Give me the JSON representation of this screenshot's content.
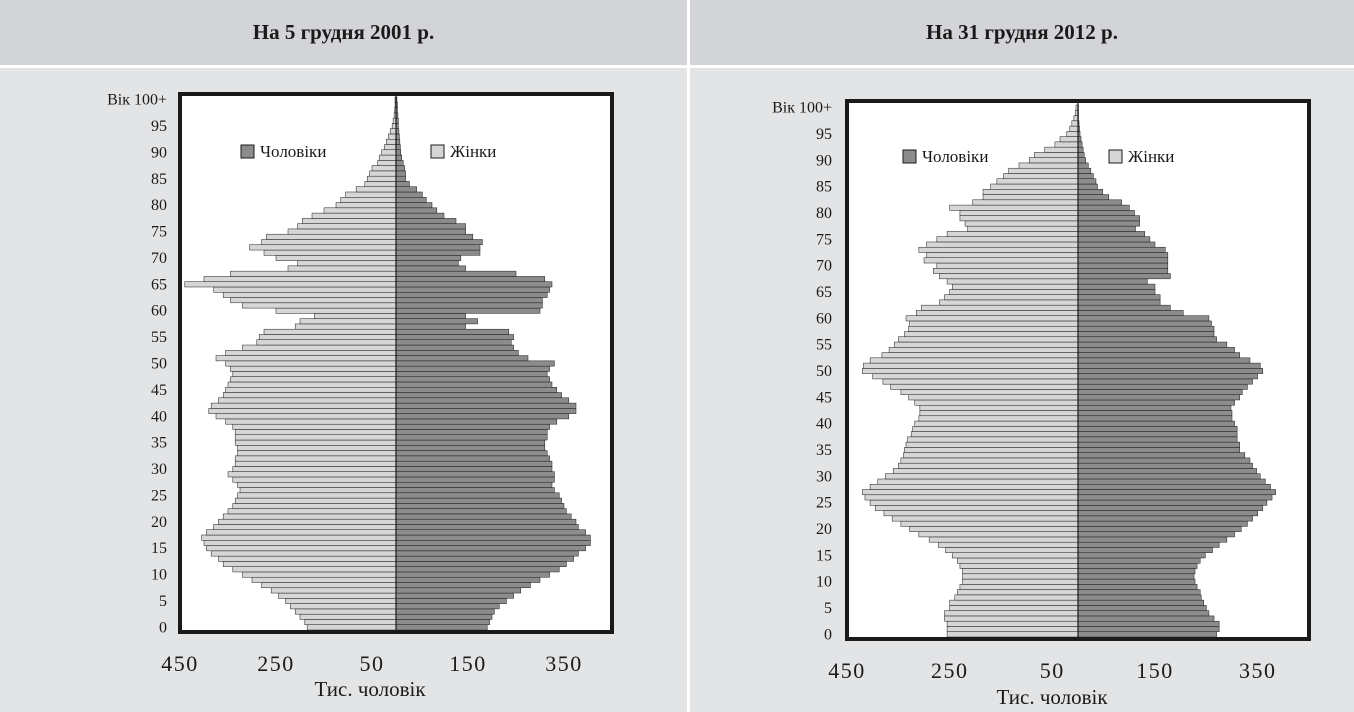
{
  "chart_data": [
    {
      "type": "bar",
      "orientation": "horizontal",
      "title": "На 5 грудня 2001 р.",
      "xlabel": "Тис. чоловік",
      "ylabel": "",
      "x_tick_labels": [
        "450",
        "250",
        "50",
        "150",
        "350"
      ],
      "y_tick_labels": [
        "0",
        "5",
        "10",
        "15",
        "20",
        "25",
        "30",
        "35",
        "40",
        "45",
        "50",
        "55",
        "60",
        "65",
        "70",
        "75",
        "80",
        "85",
        "90",
        "95",
        "Вік 100+"
      ],
      "xlim": [
        -450,
        450
      ],
      "ylim": [
        0,
        100
      ],
      "legend_position": "top",
      "series": [
        {
          "name": "Чоловіки",
          "color": "#8c8c8c",
          "side": "right",
          "values": [
            190,
            195,
            200,
            205,
            215,
            230,
            245,
            260,
            280,
            300,
            320,
            340,
            355,
            370,
            380,
            395,
            405,
            405,
            395,
            380,
            375,
            365,
            355,
            350,
            345,
            340,
            330,
            325,
            330,
            330,
            325,
            325,
            320,
            315,
            310,
            310,
            315,
            315,
            320,
            335,
            360,
            375,
            375,
            360,
            345,
            335,
            325,
            320,
            315,
            320,
            330,
            275,
            255,
            245,
            240,
            245,
            235,
            145,
            170,
            145,
            300,
            305,
            305,
            315,
            320,
            325,
            310,
            250,
            145,
            130,
            135,
            175,
            175,
            180,
            160,
            145,
            145,
            125,
            100,
            85,
            75,
            63,
            55,
            43,
            28,
            20,
            20,
            18,
            15,
            12,
            10,
            9,
            8,
            7,
            6,
            5,
            5,
            4,
            3,
            3,
            2
          ]
        },
        {
          "name": "Жінки",
          "color": "#d6d6d6",
          "side": "left",
          "values": [
            185,
            190,
            200,
            210,
            220,
            230,
            245,
            260,
            280,
            300,
            320,
            340,
            360,
            370,
            385,
            395,
            400,
            405,
            395,
            380,
            370,
            360,
            350,
            340,
            335,
            330,
            325,
            330,
            340,
            350,
            340,
            335,
            335,
            330,
            330,
            335,
            335,
            335,
            340,
            355,
            375,
            390,
            385,
            370,
            360,
            355,
            350,
            345,
            340,
            345,
            355,
            375,
            355,
            320,
            290,
            285,
            275,
            210,
            200,
            170,
            250,
            320,
            345,
            360,
            380,
            440,
            400,
            345,
            225,
            205,
            250,
            275,
            305,
            280,
            270,
            225,
            205,
            195,
            175,
            150,
            125,
            115,
            105,
            83,
            65,
            60,
            55,
            50,
            38,
            35,
            30,
            24,
            20,
            16,
            12,
            8,
            6,
            4,
            3,
            2,
            2
          ]
        }
      ]
    },
    {
      "type": "bar",
      "orientation": "horizontal",
      "title": "На 31 грудня 2012 р.",
      "xlabel": "Тис. чоловік",
      "ylabel": "",
      "x_tick_labels": [
        "450",
        "250",
        "50",
        "150",
        "350"
      ],
      "y_tick_labels": [
        "0",
        "5",
        "10",
        "15",
        "20",
        "25",
        "30",
        "35",
        "40",
        "45",
        "50",
        "55",
        "60",
        "65",
        "70",
        "75",
        "80",
        "85",
        "90",
        "95",
        "Вік 100+"
      ],
      "xlim": [
        -450,
        450
      ],
      "ylim": [
        0,
        100
      ],
      "legend_position": "top",
      "series": [
        {
          "name": "Чоловіки",
          "color": "#8c8c8c",
          "side": "right",
          "values": [
            270,
            275,
            275,
            265,
            255,
            250,
            245,
            240,
            238,
            232,
            228,
            226,
            228,
            232,
            238,
            248,
            262,
            275,
            290,
            305,
            318,
            330,
            340,
            350,
            360,
            368,
            378,
            385,
            375,
            365,
            355,
            348,
            340,
            335,
            325,
            315,
            315,
            310,
            310,
            310,
            305,
            300,
            300,
            298,
            305,
            315,
            320,
            330,
            340,
            350,
            360,
            355,
            335,
            315,
            305,
            290,
            270,
            265,
            265,
            260,
            255,
            205,
            180,
            160,
            160,
            150,
            150,
            135,
            180,
            175,
            175,
            175,
            175,
            170,
            150,
            140,
            130,
            112,
            120,
            120,
            110,
            100,
            85,
            60,
            48,
            38,
            35,
            30,
            25,
            20,
            15,
            12,
            10,
            8,
            6,
            4,
            3,
            2,
            1,
            1,
            1
          ]
        },
        {
          "name": "Жінки",
          "color": "#d6d6d6",
          "side": "left",
          "values": [
            255,
            255,
            255,
            260,
            260,
            250,
            250,
            240,
            235,
            230,
            225,
            225,
            225,
            230,
            235,
            245,
            258,
            272,
            290,
            310,
            328,
            345,
            362,
            378,
            395,
            405,
            415,
            420,
            405,
            390,
            375,
            360,
            350,
            345,
            340,
            338,
            335,
            332,
            325,
            322,
            318,
            310,
            308,
            308,
            318,
            330,
            345,
            365,
            380,
            400,
            420,
            418,
            405,
            382,
            368,
            358,
            350,
            338,
            330,
            328,
            335,
            315,
            305,
            270,
            260,
            250,
            245,
            255,
            270,
            282,
            275,
            300,
            295,
            310,
            295,
            275,
            255,
            215,
            220,
            230,
            230,
            250,
            205,
            185,
            185,
            170,
            158,
            145,
            135,
            115,
            95,
            85,
            65,
            45,
            35,
            22,
            16,
            12,
            8,
            5,
            4
          ]
        }
      ]
    }
  ]
}
